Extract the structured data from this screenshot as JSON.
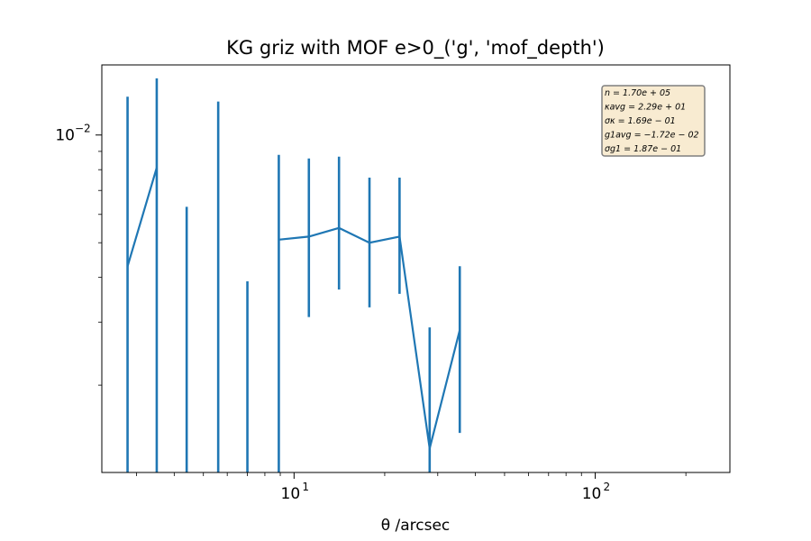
{
  "chart_data": {
    "type": "line",
    "title": "KG griz with MOF e>0_('g', 'mof_depth')",
    "xlabel": "θ /arcsec",
    "ylabel": "",
    "xscale": "log",
    "yscale": "log",
    "xlim": [
      2.3,
      280
    ],
    "ylim": [
      0.00114,
      0.0157
    ],
    "xticks": [
      {
        "value": 10,
        "label": "10",
        "exp": "1"
      },
      {
        "value": 100,
        "label": "10",
        "exp": "2"
      }
    ],
    "yticks": [
      {
        "value": 0.01,
        "label": "10",
        "exp": "−2"
      }
    ],
    "grid": false,
    "line_color": "#1f77b4",
    "series": [
      {
        "x": [
          2.8,
          3.5,
          4.4,
          5.6,
          7.0,
          8.9,
          11.2,
          14.1,
          17.8,
          22.4,
          28.2,
          35.5
        ],
        "y": [
          0.0043,
          0.0081,
          null,
          null,
          null,
          0.0051,
          0.0052,
          0.0055,
          0.005,
          0.0052,
          0.00133,
          0.00285
        ],
        "yerr_low": [
          0.00114,
          0.00114,
          0.00114,
          0.00114,
          0.00114,
          0.00114,
          0.0031,
          0.0037,
          0.0033,
          0.0036,
          0.00114,
          0.00147
        ],
        "yerr_high": [
          0.0128,
          0.0144,
          0.0063,
          0.0124,
          0.0039,
          0.0088,
          0.0086,
          0.0087,
          0.0076,
          0.0076,
          0.0029,
          0.0043
        ]
      }
    ],
    "legend_position": "top-right",
    "stats_box": [
      {
        "label": "n",
        "value": "= 1.70e + 05"
      },
      {
        "label": "κavg",
        "value": "= 2.29e + 01"
      },
      {
        "label": "σκ",
        "value": "= 1.69e − 01"
      },
      {
        "label": "g1avg",
        "value": "= −1.72e − 02"
      },
      {
        "label": "σg1",
        "value": "= 1.87e − 01"
      }
    ]
  }
}
